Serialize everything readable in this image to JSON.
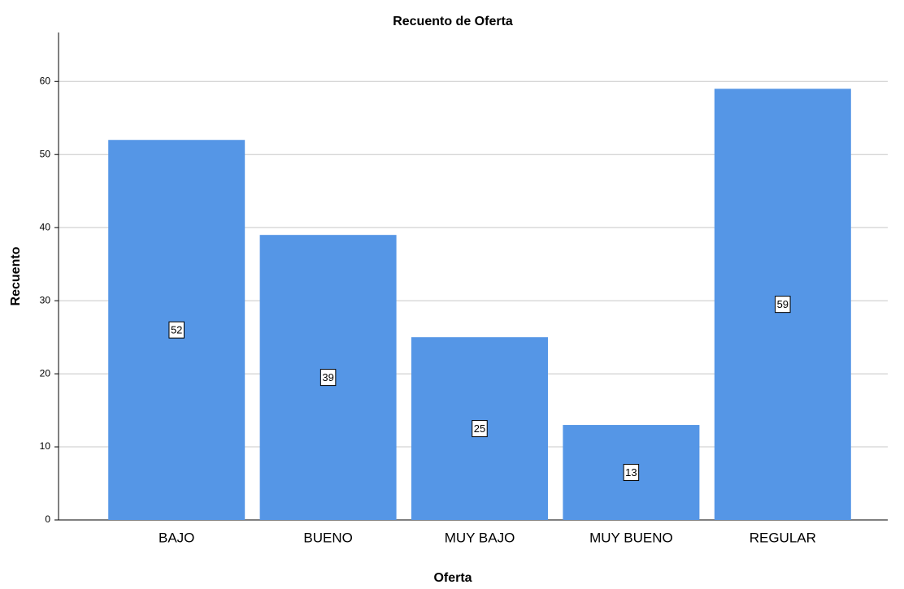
{
  "chart_data": {
    "type": "bar",
    "title": "Recuento de Oferta",
    "x_label": "Oferta",
    "y_label": "Recuento",
    "categories": [
      "BAJO",
      "BUENO",
      "MUY BAJO",
      "MUY BUENO",
      "REGULAR"
    ],
    "values": [
      52,
      39,
      25,
      13,
      59
    ],
    "color": "#5596e6",
    "ylim": [
      0,
      66.7
    ],
    "yticks": [
      0,
      10,
      20,
      30,
      40,
      50,
      60
    ],
    "grid": true
  }
}
